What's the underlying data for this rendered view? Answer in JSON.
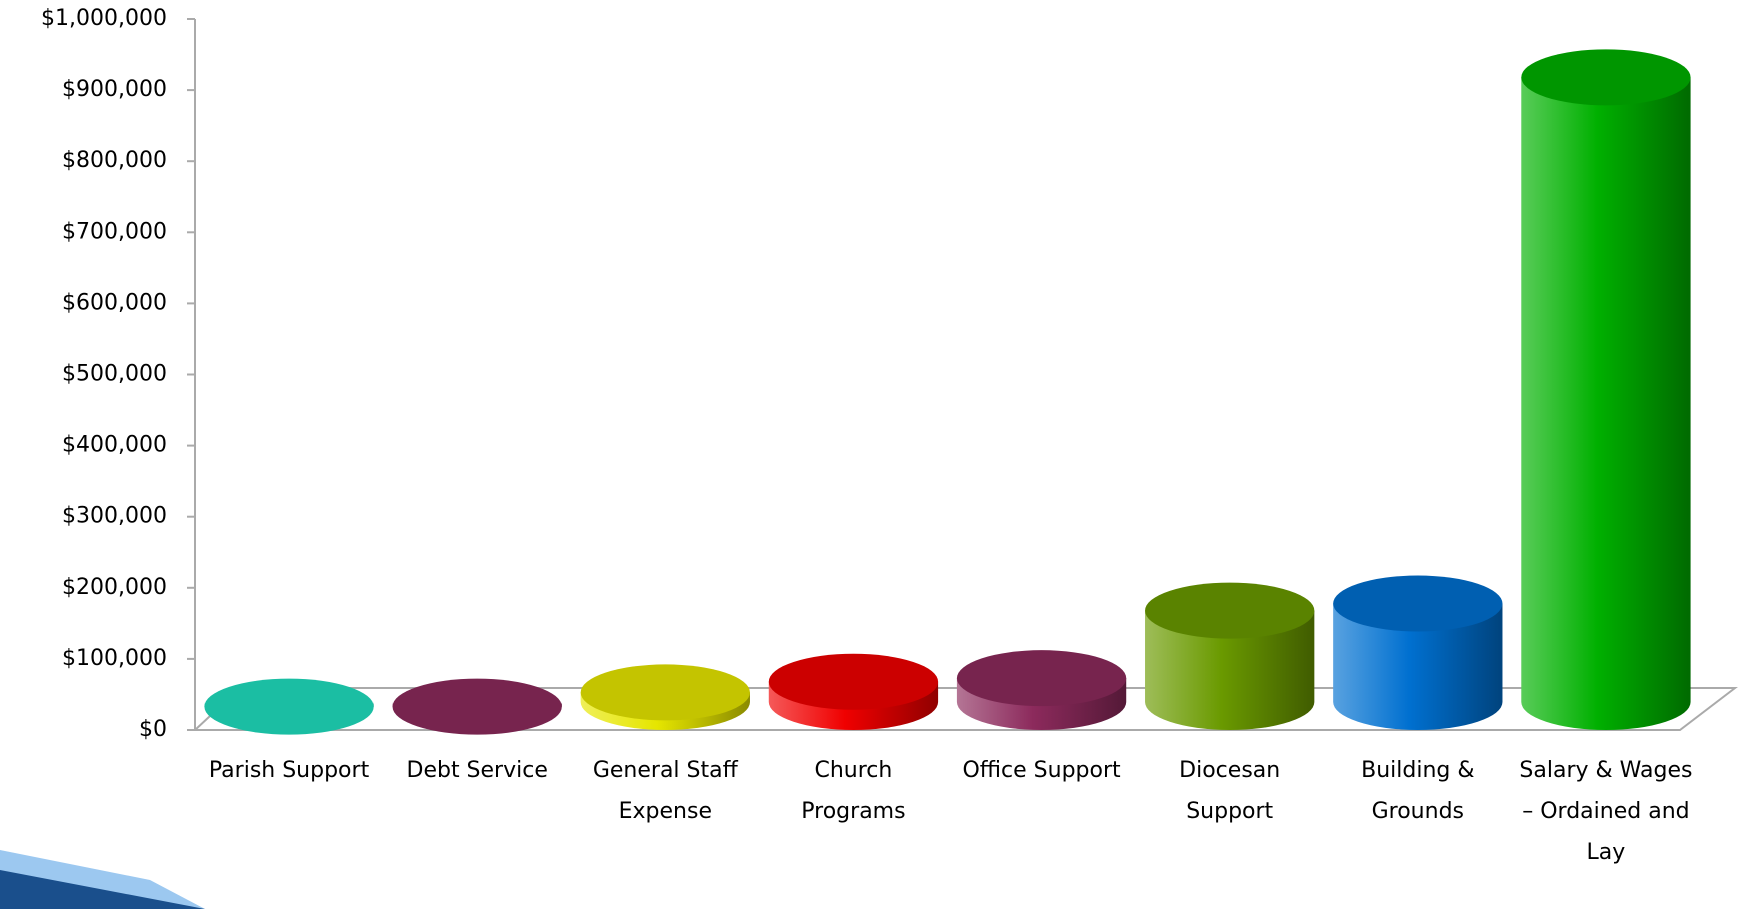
{
  "chart_data": {
    "type": "bar",
    "categories": [
      "Parish Support",
      "Debt Service",
      "General Staff Expense",
      "Church Programs",
      "Office Support",
      "Diocesan Support",
      "Building & Grounds",
      "Salary & Wages – Ordained and Lay"
    ],
    "values": [
      25000,
      25000,
      45000,
      60000,
      65000,
      160000,
      170000,
      910000
    ],
    "colors": [
      "#20e0c0",
      "#8c2a5c",
      "#e6e600",
      "#f00000",
      "#8c2a5c",
      "#6a9a00",
      "#0070d0",
      "#00b000"
    ],
    "ylim": [
      0,
      1000000
    ],
    "yticks": [
      {
        "value": 0,
        "label": "$0"
      },
      {
        "value": 100000,
        "label": "$100,000"
      },
      {
        "value": 200000,
        "label": "$200,000"
      },
      {
        "value": 300000,
        "label": "$300,000"
      },
      {
        "value": 400000,
        "label": "$400,000"
      },
      {
        "value": 500000,
        "label": "$500,000"
      },
      {
        "value": 600000,
        "label": "$600,000"
      },
      {
        "value": 700000,
        "label": "$700,000"
      },
      {
        "value": 800000,
        "label": "$800,000"
      },
      {
        "value": 900000,
        "label": "$900,000"
      },
      {
        "value": 1000000,
        "label": "$1,000,000"
      }
    ]
  }
}
